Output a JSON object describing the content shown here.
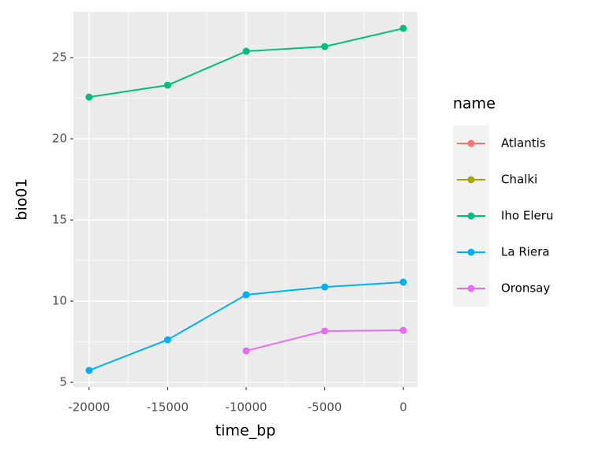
{
  "chart_data": {
    "type": "line",
    "x_label": "time_bp",
    "y_label": "bio01",
    "legend_title": "name",
    "x": [
      -20000,
      -15000,
      -10000,
      -5000,
      0
    ],
    "series": [
      {
        "name": "Atlantis",
        "color": "#F8766D",
        "values": [
          null,
          null,
          null,
          null,
          null
        ]
      },
      {
        "name": "Chalki",
        "color": "#A3A500",
        "values": [
          null,
          null,
          null,
          null,
          null
        ]
      },
      {
        "name": "Iho Eleru",
        "color": "#00BF7D",
        "values": [
          22.57,
          23.3,
          25.39,
          25.68,
          26.8
        ]
      },
      {
        "name": "La Riera",
        "color": "#00B0F6",
        "values": [
          5.73,
          7.62,
          10.39,
          10.87,
          11.17
        ]
      },
      {
        "name": "Oronsay",
        "color": "#E76BF3",
        "values": [
          null,
          null,
          6.94,
          8.16,
          8.2
        ]
      }
    ],
    "xlim": [
      -21000,
      900
    ],
    "ylim": [
      4.71,
      27.82
    ],
    "xticks": [
      -20000,
      -15000,
      -10000,
      -5000,
      0
    ],
    "yticks": [
      5,
      10,
      15,
      20,
      25
    ],
    "grid": true,
    "legend": "right"
  }
}
